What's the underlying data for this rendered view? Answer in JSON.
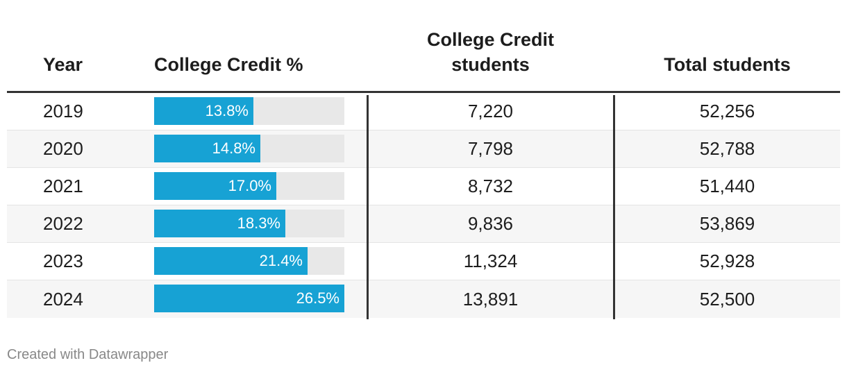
{
  "chart_data": {
    "type": "table",
    "title": "",
    "columns": [
      "Year",
      "College Credit %",
      "College Credit students",
      "Total students"
    ],
    "bar_column": "College Credit %",
    "bar_max": 26.5,
    "rows": [
      {
        "year": "2019",
        "pct": 13.8,
        "pct_label": "13.8%",
        "cc_students": "7,220",
        "total_students": "52,256"
      },
      {
        "year": "2020",
        "pct": 14.8,
        "pct_label": "14.8%",
        "cc_students": "7,798",
        "total_students": "52,788"
      },
      {
        "year": "2021",
        "pct": 17.0,
        "pct_label": "17.0%",
        "cc_students": "8,732",
        "total_students": "51,440"
      },
      {
        "year": "2022",
        "pct": 18.3,
        "pct_label": "18.3%",
        "cc_students": "9,836",
        "total_students": "53,869"
      },
      {
        "year": "2023",
        "pct": 21.4,
        "pct_label": "21.4%",
        "cc_students": "11,324",
        "total_students": "52,928"
      },
      {
        "year": "2024",
        "pct": 26.5,
        "pct_label": "26.5%",
        "cc_students": "13,891",
        "total_students": "52,500"
      }
    ]
  },
  "header": {
    "year": "Year",
    "pct": "College Credit %",
    "cc_line1": "College Credit",
    "cc_line2": "students",
    "total": "Total students"
  },
  "footer": {
    "credit": "Created with Datawrapper"
  },
  "colors": {
    "bar": "#17a2d4",
    "track": "#e8e8e8",
    "rule": "#333333"
  }
}
